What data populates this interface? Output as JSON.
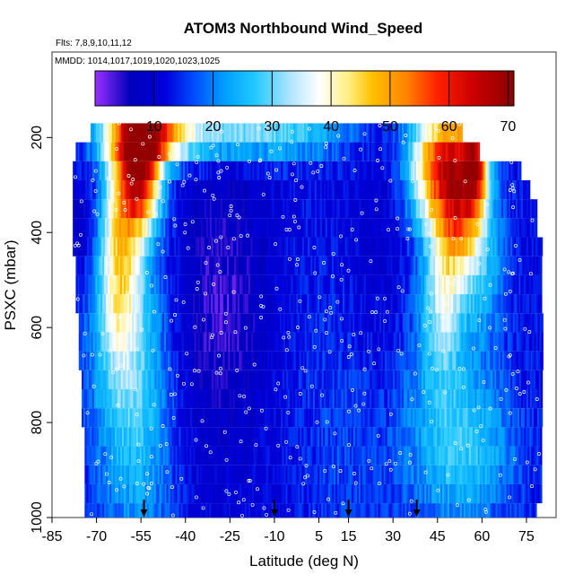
{
  "chart_data": {
    "type": "heatmap",
    "title": "ATOM3 Northbound Wind_Speed",
    "flights_note": "Flts: 7,8,9,10,11,12",
    "dates_note": "MMDD: 1014,1017,1019,1020,1023,1025",
    "xlabel": "Latitude (deg N)",
    "ylabel": "PSXC (mbar)",
    "xlim": [
      -85,
      85
    ],
    "ylim": [
      1000,
      20
    ],
    "y_reversed": true,
    "x_ticks": [
      "-85",
      "-70",
      "-55",
      "-40",
      "-25",
      "-10",
      "5",
      "15",
      "30",
      "45",
      "60",
      "75"
    ],
    "x_tick_values": [
      -85,
      -70,
      -55,
      -40,
      -25,
      -10,
      5,
      15,
      30,
      45,
      60,
      75
    ],
    "y_ticks": [
      "200",
      "400",
      "600",
      "800",
      "1000"
    ],
    "y_tick_values": [
      200,
      400,
      600,
      800,
      1000
    ],
    "colorbar": {
      "range": [
        0,
        71
      ],
      "ticks": [
        "10",
        "20",
        "30",
        "40",
        "50",
        "60",
        "70"
      ],
      "tick_values": [
        10,
        20,
        30,
        40,
        50,
        60,
        70
      ],
      "stops": [
        {
          "v": 0,
          "c": "#9b30ff"
        },
        {
          "v": 6,
          "c": "#0000bb"
        },
        {
          "v": 12,
          "c": "#0000dd"
        },
        {
          "v": 17,
          "c": "#0050ff"
        },
        {
          "v": 22,
          "c": "#00a0ff"
        },
        {
          "v": 27,
          "c": "#20c8ff"
        },
        {
          "v": 33,
          "c": "#aee4ff"
        },
        {
          "v": 38,
          "c": "#ffffff"
        },
        {
          "v": 43,
          "c": "#ffee80"
        },
        {
          "v": 47,
          "c": "#ffc000"
        },
        {
          "v": 53,
          "c": "#ff8000"
        },
        {
          "v": 58,
          "c": "#ff2000"
        },
        {
          "v": 64,
          "c": "#cc0000"
        },
        {
          "v": 71,
          "c": "#8b0000"
        }
      ]
    },
    "pressure_bands": [
      {
        "p_top": 170,
        "p_bot": 210,
        "lat_min": -72,
        "lat_max": 53
      },
      {
        "p_top": 210,
        "p_bot": 250,
        "lat_min": -77,
        "lat_max": 59
      },
      {
        "p_top": 250,
        "p_bot": 290,
        "lat_min": -78,
        "lat_max": 73
      },
      {
        "p_top": 290,
        "p_bot": 330,
        "lat_min": -78,
        "lat_max": 76
      },
      {
        "p_top": 330,
        "p_bot": 370,
        "lat_min": -78,
        "lat_max": 78
      },
      {
        "p_top": 370,
        "p_bot": 410,
        "lat_min": -78,
        "lat_max": 78
      },
      {
        "p_top": 410,
        "p_bot": 450,
        "lat_min": -78,
        "lat_max": 80
      },
      {
        "p_top": 450,
        "p_bot": 490,
        "lat_min": -77,
        "lat_max": 80
      },
      {
        "p_top": 490,
        "p_bot": 530,
        "lat_min": -77,
        "lat_max": 80
      },
      {
        "p_top": 530,
        "p_bot": 570,
        "lat_min": -77,
        "lat_max": 80
      },
      {
        "p_top": 570,
        "p_bot": 610,
        "lat_min": -76,
        "lat_max": 80
      },
      {
        "p_top": 610,
        "p_bot": 650,
        "lat_min": -76,
        "lat_max": 80
      },
      {
        "p_top": 650,
        "p_bot": 690,
        "lat_min": -76,
        "lat_max": 80
      },
      {
        "p_top": 690,
        "p_bot": 730,
        "lat_min": -75,
        "lat_max": 80
      },
      {
        "p_top": 730,
        "p_bot": 770,
        "lat_min": -75,
        "lat_max": 80
      },
      {
        "p_top": 770,
        "p_bot": 810,
        "lat_min": -75,
        "lat_max": 80
      },
      {
        "p_top": 810,
        "p_bot": 850,
        "lat_min": -74,
        "lat_max": 80
      },
      {
        "p_top": 850,
        "p_bot": 890,
        "lat_min": -74,
        "lat_max": 80
      },
      {
        "p_top": 890,
        "p_bot": 930,
        "lat_min": -74,
        "lat_max": 80
      },
      {
        "p_top": 930,
        "p_bot": 970,
        "lat_min": -74,
        "lat_max": 80
      },
      {
        "p_top": 970,
        "p_bot": 1010,
        "lat_min": -74,
        "lat_max": 78
      }
    ],
    "wind_features": [
      {
        "lat": -55,
        "p": 280,
        "amp": 45,
        "sx": 5,
        "sy": 80
      },
      {
        "lat": -52,
        "p": 200,
        "amp": 35,
        "sx": 10,
        "sy": 40
      },
      {
        "lat": -62,
        "p": 430,
        "amp": 26,
        "sx": 5,
        "sy": 170
      },
      {
        "lat": -54,
        "p": 760,
        "amp": 12,
        "sx": 8,
        "sy": 250
      },
      {
        "lat": -65,
        "p": 650,
        "amp": 8,
        "sx": 8,
        "sy": 250
      },
      {
        "lat": -20,
        "p": 190,
        "amp": 20,
        "sx": 25,
        "sy": 40
      },
      {
        "lat": 48,
        "p": 215,
        "amp": 28,
        "sx": 8,
        "sy": 60
      },
      {
        "lat": 44,
        "p": 300,
        "amp": 24,
        "sx": 7,
        "sy": 70
      },
      {
        "lat": 58,
        "p": 260,
        "amp": 32,
        "sx": 3,
        "sy": 70
      },
      {
        "lat": 53,
        "p": 350,
        "amp": 28,
        "sx": 5,
        "sy": 90
      },
      {
        "lat": 47,
        "p": 500,
        "amp": 20,
        "sx": 5,
        "sy": 140
      },
      {
        "lat": 60,
        "p": 460,
        "amp": 12,
        "sx": 6,
        "sy": 130
      },
      {
        "lat": 55,
        "p": 860,
        "amp": 14,
        "sx": 12,
        "sy": 120
      },
      {
        "lat": 40,
        "p": 640,
        "amp": 6,
        "sx": 10,
        "sy": 200
      },
      {
        "lat": 20,
        "p": 780,
        "amp": 6,
        "sx": 15,
        "sy": 250
      }
    ],
    "calm_features": [
      {
        "lat": -28,
        "p": 560,
        "amp": 8,
        "sx": 12,
        "sy": 220
      },
      {
        "lat": 28,
        "p": 560,
        "amp": 7,
        "sx": 10,
        "sy": 260
      },
      {
        "lat": -75,
        "p": 380,
        "amp": 6,
        "sx": 6,
        "sy": 80
      }
    ],
    "base_speed": 12,
    "markers_lat": [
      -54,
      -10,
      15,
      38
    ]
  }
}
